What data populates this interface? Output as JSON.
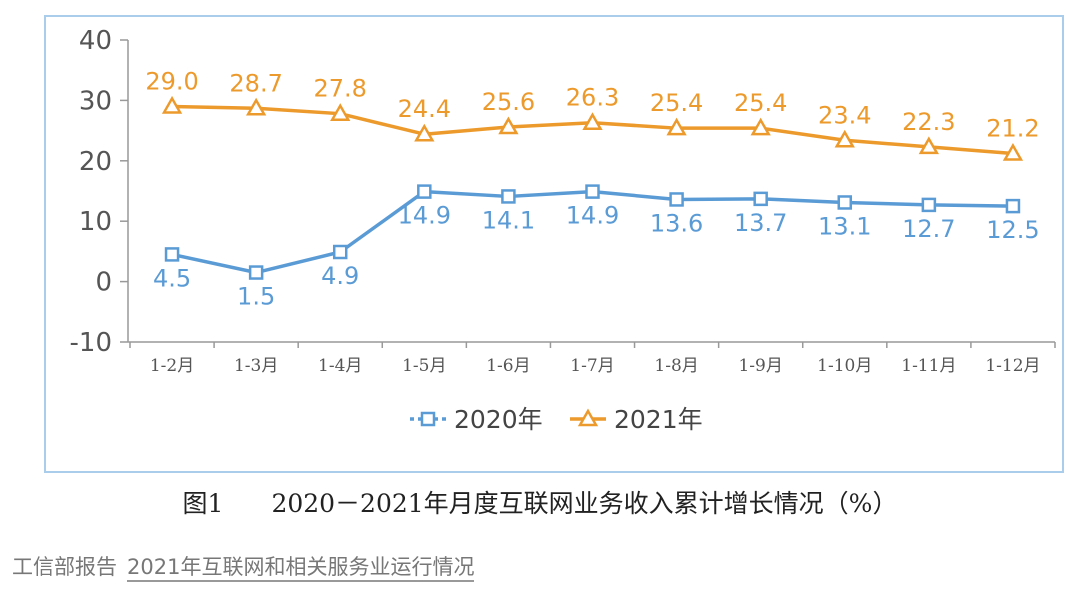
{
  "chart_data": {
    "type": "line",
    "categories": [
      "1-2月",
      "1-3月",
      "1-4月",
      "1-5月",
      "1-6月",
      "1-7月",
      "1-8月",
      "1-9月",
      "1-10月",
      "1-11月",
      "1-12月"
    ],
    "series": [
      {
        "name": "2020年",
        "values": [
          4.5,
          1.5,
          4.9,
          14.9,
          14.1,
          14.9,
          13.6,
          13.7,
          13.1,
          12.7,
          12.5
        ],
        "color": "#5b9bd5",
        "marker": "square",
        "labels": "below"
      },
      {
        "name": "2021年",
        "values": [
          29.0,
          28.7,
          27.8,
          24.4,
          25.6,
          26.3,
          25.4,
          25.4,
          23.4,
          22.3,
          21.2
        ],
        "color": "#ed9a2c",
        "marker": "triangle",
        "labels": "above"
      }
    ],
    "ylim": [
      -10,
      40
    ],
    "yticks": [
      40,
      30,
      20,
      10,
      0,
      -10
    ],
    "grid": false,
    "legend": "bottom"
  },
  "caption": {
    "number": "图1",
    "title": "2020－2021年月度互联网业务收入累计增长情况（%）"
  },
  "source": {
    "org": "工信部报告",
    "link_text": "2021年互联网和相关服务业运行情况"
  }
}
